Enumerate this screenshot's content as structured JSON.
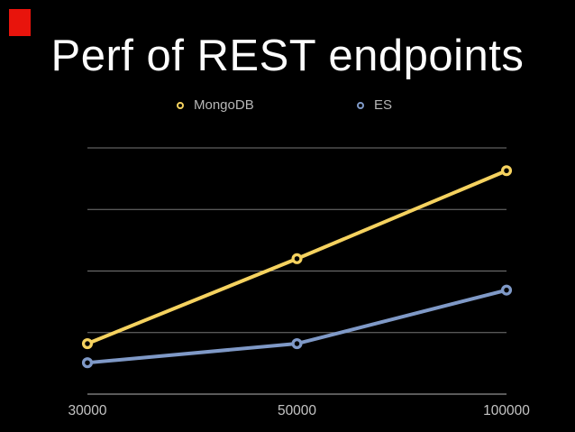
{
  "slide": {
    "title": "Perf of REST endpoints",
    "background_color": "#000000",
    "red_marker_color": "#e8140c"
  },
  "legend": [
    {
      "label": "MongoDB",
      "color": "#f5d25f"
    },
    {
      "label": "ES",
      "color": "#7f99c7"
    }
  ],
  "chart_data": {
    "type": "line",
    "title": "Perf of REST endpoints",
    "categories": [
      "30000",
      "50000",
      "100000"
    ],
    "series": [
      {
        "name": "MongoDB",
        "color": "#f5d25f",
        "values": [
          0.82,
          2.2,
          3.63
        ]
      },
      {
        "name": "ES",
        "color": "#7f99c7",
        "values": [
          0.51,
          0.82,
          1.69
        ]
      }
    ],
    "xlabel": "",
    "ylabel": "",
    "ylim": [
      0,
      4
    ],
    "gridlines": [
      1,
      2,
      3,
      4
    ],
    "grid_color": "#767676",
    "axis_color": "#8f8f8f",
    "legend_position": "top-center",
    "marker_style": "open-ring",
    "note": "y-axis has no visible labels; values estimated in gridline units (axis baseline = 0, one unit per gridline interval)"
  }
}
